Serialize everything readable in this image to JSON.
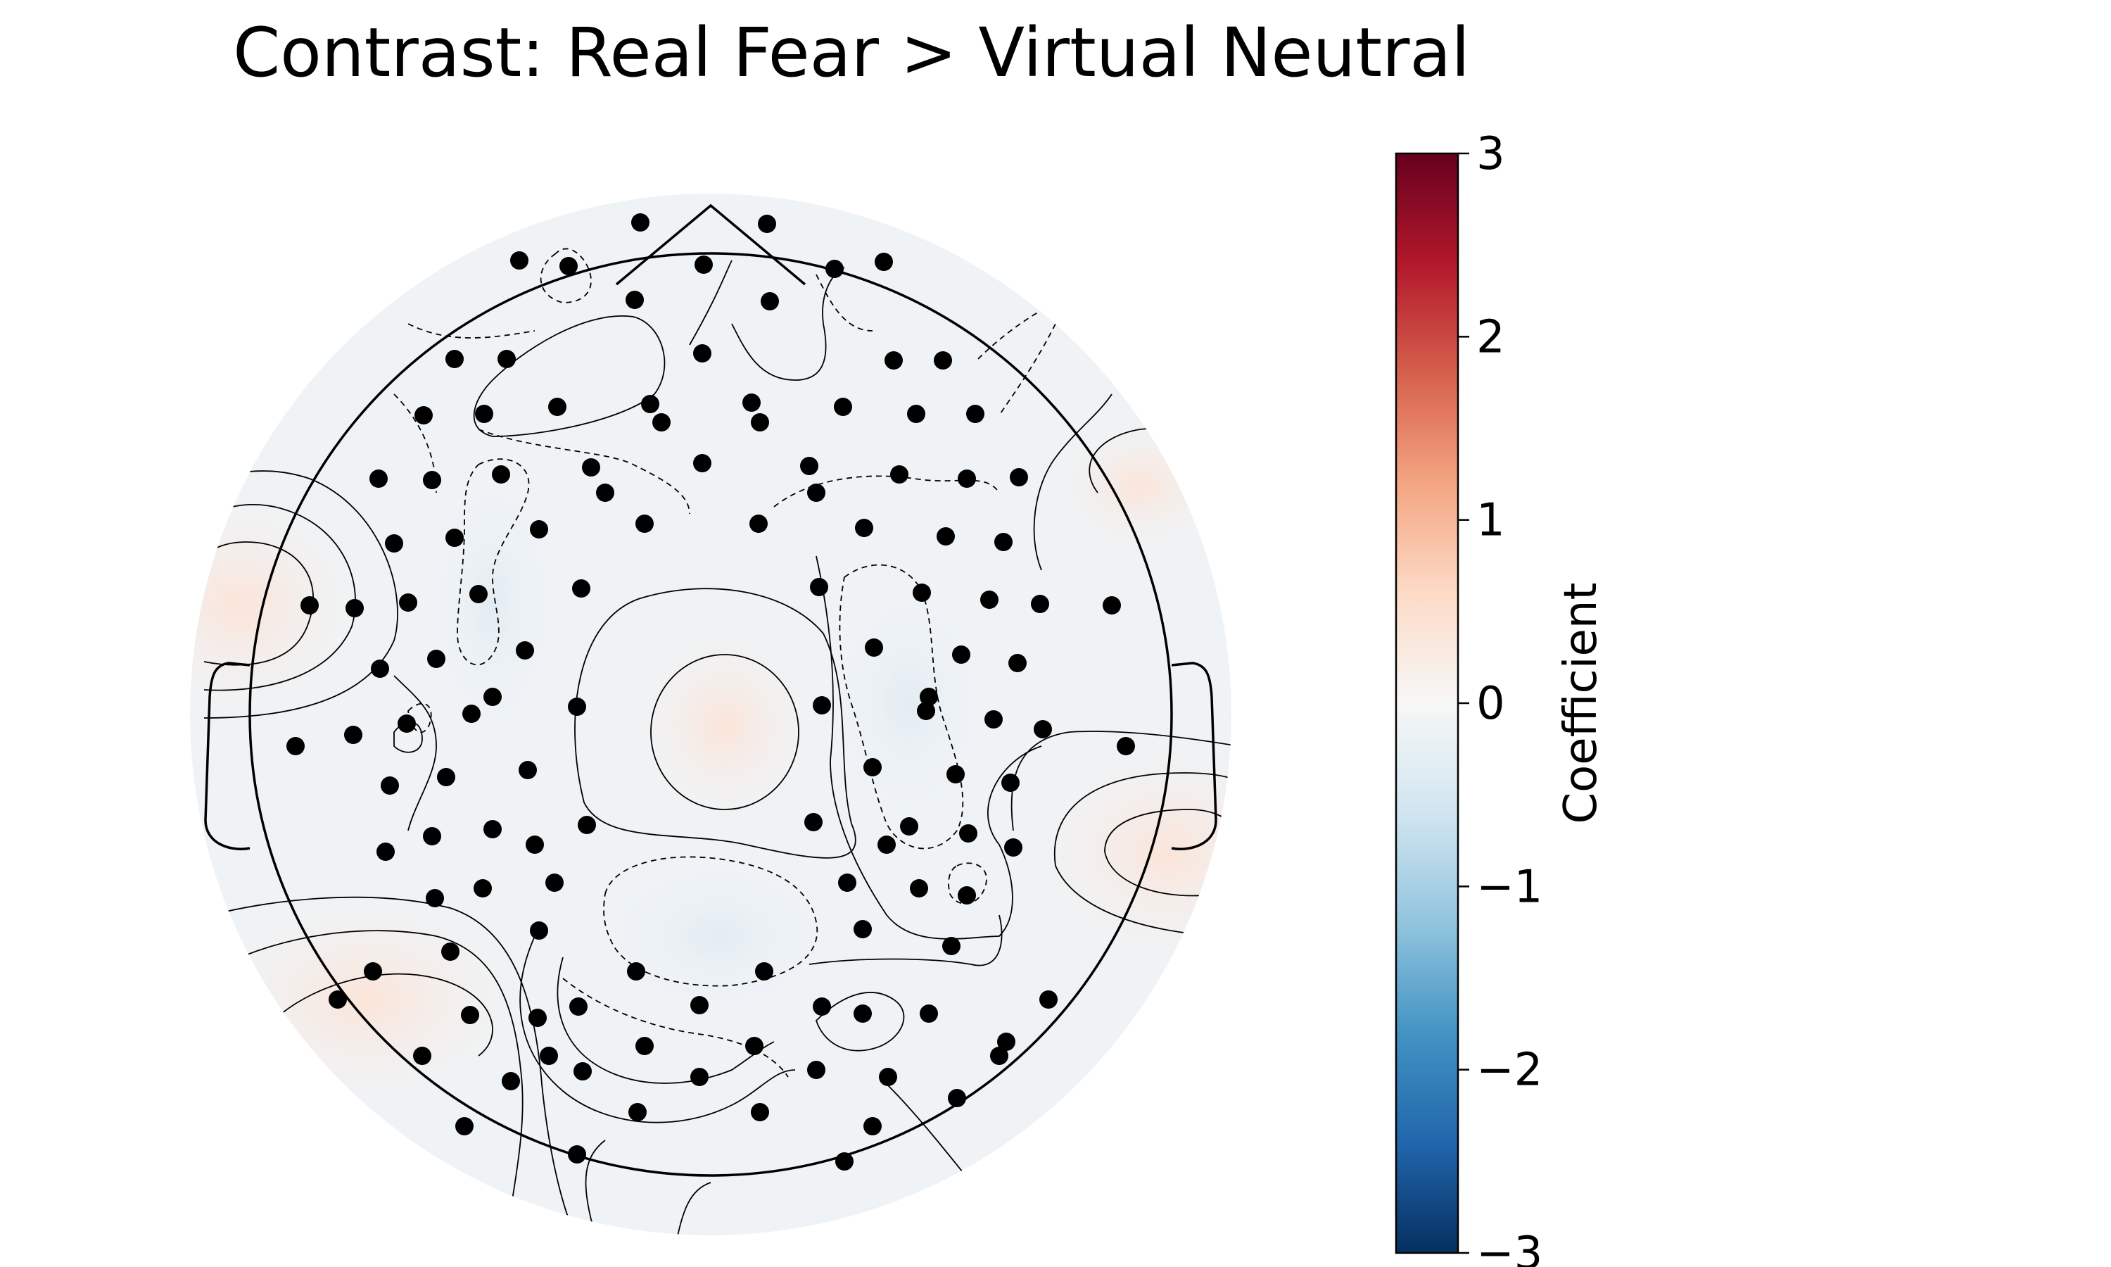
{
  "chart_data": {
    "type": "topomap",
    "title": "Contrast: Real Fear > Virtual Neutral",
    "colorbar": {
      "label": "Coefficient",
      "vmin": -3,
      "vmax": 3,
      "ticks": [
        3,
        2,
        1,
        0,
        -1,
        -2,
        -3
      ],
      "tick_labels": [
        "3",
        "2",
        "1",
        "0",
        "−1",
        "−2",
        "−3"
      ],
      "colormap": "RdBu_r",
      "colors": [
        "#053061",
        "#2166ac",
        "#4393c3",
        "#92c5de",
        "#d1e5f0",
        "#f7f7f7",
        "#fddbc7",
        "#f4a582",
        "#d6604d",
        "#b2182b",
        "#67001f"
      ]
    },
    "sensor_count": 128,
    "sensor_color": "#000000",
    "value_range_in_map": [
      -0.2,
      0.2
    ],
    "contour_style": {
      "positive": "solid",
      "negative": "dashed"
    },
    "extrema": [
      {
        "region": "left-temporal",
        "sign": "positive",
        "approx_value": 0.15
      },
      {
        "region": "right-temporal",
        "sign": "positive",
        "approx_value": 0.15
      },
      {
        "region": "left-occipital",
        "sign": "positive",
        "approx_value": 0.12
      },
      {
        "region": "central",
        "sign": "positive",
        "approx_value": 0.08
      },
      {
        "region": "centro-posterior",
        "sign": "negative",
        "approx_value": -0.06
      }
    ]
  }
}
